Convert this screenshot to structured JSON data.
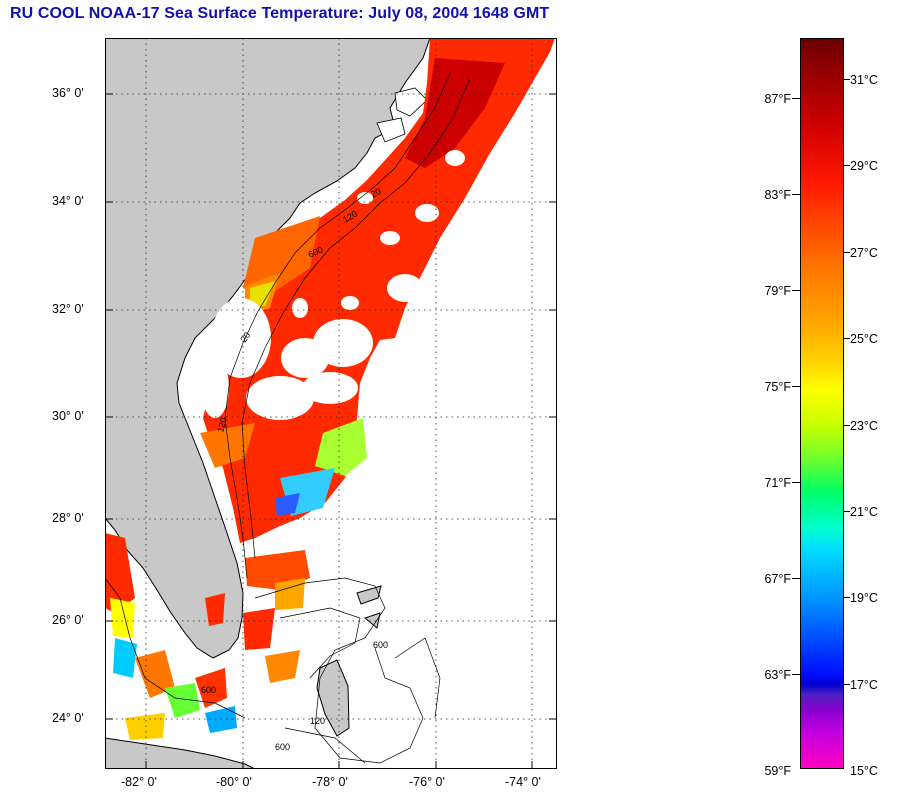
{
  "title": "RU COOL  NOAA-17  Sea Surface Temperature:  July 08, 2004 1648 GMT",
  "map": {
    "latitude_labels": [
      "36° 0'",
      "34° 0'",
      "32° 0'",
      "30° 0'",
      "28° 0'",
      "26° 0'",
      "24° 0'"
    ],
    "longitude_labels": [
      "-82° 0'",
      "-80° 0'",
      "-78° 0'",
      "-76° 0'",
      "-74° 0'"
    ],
    "isobath_labels": [
      "20",
      "120",
      "600",
      "20",
      "120",
      "600",
      "120",
      "600",
      "600"
    ]
  },
  "colorbar": {
    "fahrenheit_labels": [
      "87°F",
      "83°F",
      "79°F",
      "75°F",
      "71°F",
      "67°F",
      "63°F",
      "59°F"
    ],
    "celsius_labels": [
      "31°C",
      "29°C",
      "27°C",
      "25°C",
      "23°C",
      "21°C",
      "19°C",
      "17°C",
      "15°C"
    ]
  },
  "colors": {
    "title": "#1010b0",
    "land": "#c8c8c8",
    "warm_water": "#ff2a00"
  }
}
